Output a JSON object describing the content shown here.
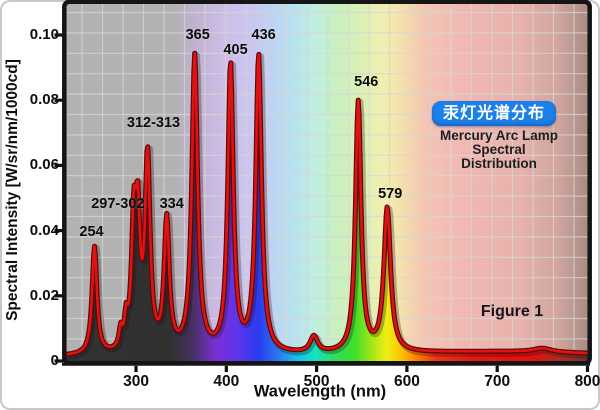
{
  "figure": {
    "caption": "Figure 1"
  },
  "title_box": {
    "chinese_title": "汞灯光谱分布",
    "box_color": "#1d7fe8",
    "text_color": "#ffffff",
    "english_title_lines": [
      "Mercury Arc Lamp",
      "Spectral",
      "Distribution"
    ]
  },
  "axes": {
    "x_title": "Wavelength (nm)",
    "y_title": "Spectral Intensity [W/sr/nm/1000cd]",
    "x_tick_labels": [
      "300",
      "400",
      "500",
      "600",
      "700",
      "800"
    ],
    "y_tick_labels": [
      "0.10",
      "0.08",
      "0.06",
      "0.04",
      "0.02",
      "0"
    ]
  },
  "chart_data": {
    "type": "line",
    "title": "Mercury Arc Lamp Spectral Distribution",
    "title_chinese": "汞灯光谱分布",
    "xlabel": "Wavelength (nm)",
    "ylabel": "Spectral Intensity [W/sr/nm/1000cd]",
    "xlim": [
      223,
      800
    ],
    "ylim": [
      0,
      0.1095
    ],
    "x_ticks": [
      300,
      400,
      500,
      600,
      700,
      800
    ],
    "y_ticks": [
      0.1,
      0.08,
      0.06,
      0.04,
      0.02,
      0
    ],
    "grid": true,
    "line_color": "#e01212",
    "line_edge_color": "#5f0808",
    "baseline_intensity": 0.0012,
    "peaks": [
      {
        "nm": 254,
        "intensity": 0.036,
        "label": "254",
        "dx": -3,
        "dy": -12,
        "h": 0.033,
        "w": 3.2
      },
      {
        "nm": 283,
        "intensity": 0.011,
        "h": 0.0055,
        "w": 2.2
      },
      {
        "nm": 289,
        "intensity": 0.015,
        "h": 0.008,
        "w": 2.2
      },
      {
        "nm": 297.5,
        "intensity": 0.0435,
        "h": 0.036,
        "w": 3.0
      },
      {
        "nm": 302,
        "intensity": 0.045,
        "label": "297-302",
        "dx": -20,
        "dy": -10,
        "h": 0.036,
        "w": 3.0
      },
      {
        "nm": 312.7,
        "intensity": 0.07,
        "label": "312-313",
        "dx": 6,
        "dy": -10,
        "h": 0.059,
        "w": 3.4
      },
      {
        "nm": 334,
        "intensity": 0.0455,
        "label": "334",
        "dx": 5,
        "dy": -9,
        "h": 0.04,
        "w": 3.4
      },
      {
        "nm": 365,
        "intensity": 0.096,
        "label": "365",
        "dx": 3,
        "dy": -13,
        "h": 0.091,
        "w": 3.8
      },
      {
        "nm": 404.7,
        "intensity": 0.0935,
        "label": "405",
        "dx": 5,
        "dy": -6,
        "h": 0.088,
        "w": 3.6
      },
      {
        "nm": 435.8,
        "intensity": 0.096,
        "label": "436",
        "dx": 5,
        "dy": -13,
        "h": 0.091,
        "w": 3.8
      },
      {
        "nm": 497,
        "intensity": 0.008,
        "h": 0.005,
        "w": 5
      },
      {
        "nm": 546.1,
        "intensity": 0.082,
        "label": "546",
        "dx": 8,
        "dy": -12,
        "h": 0.077,
        "w": 3.6
      },
      {
        "nm": 578.2,
        "intensity": 0.049,
        "label": "579",
        "dx": 3,
        "dy": -7,
        "h": 0.044,
        "w": 4.4
      },
      {
        "nm": 700,
        "intensity": 0.003,
        "h": 0.0016,
        "w": 150
      },
      {
        "nm": 750,
        "intensity": 0.0042,
        "h": 0.0012,
        "w": 12
      }
    ],
    "background": {
      "pale_stops": [
        {
          "nm": 223,
          "color": "#b2b2b2"
        },
        {
          "nm": 340,
          "color": "#b3b1b3"
        },
        {
          "nm": 372,
          "color": "#c3b3d5"
        },
        {
          "nm": 400,
          "color": "#cdbfe9"
        },
        {
          "nm": 428,
          "color": "#c9c6f0"
        },
        {
          "nm": 450,
          "color": "#bfd2f3"
        },
        {
          "nm": 475,
          "color": "#b8e2f0"
        },
        {
          "nm": 497,
          "color": "#bfeee0"
        },
        {
          "nm": 520,
          "color": "#c8f0c2"
        },
        {
          "nm": 548,
          "color": "#d9f0b4"
        },
        {
          "nm": 574,
          "color": "#f1efb0"
        },
        {
          "nm": 597,
          "color": "#f6ddac"
        },
        {
          "nm": 622,
          "color": "#f3c4b4"
        },
        {
          "nm": 665,
          "color": "#f0b8b3"
        },
        {
          "nm": 725,
          "color": "#e7b2ac"
        },
        {
          "nm": 768,
          "color": "#d0a59d"
        },
        {
          "nm": 800,
          "color": "#a78d84"
        }
      ],
      "saturated_stops": [
        {
          "nm": 223,
          "color": "#333333"
        },
        {
          "nm": 338,
          "color": "#303030"
        },
        {
          "nm": 362,
          "color": "#46305e"
        },
        {
          "nm": 388,
          "color": "#7a2fd2"
        },
        {
          "nm": 412,
          "color": "#6134ea"
        },
        {
          "nm": 436,
          "color": "#2a3cf0"
        },
        {
          "nm": 460,
          "color": "#2b80f0"
        },
        {
          "nm": 480,
          "color": "#10c6ee"
        },
        {
          "nm": 499,
          "color": "#16e2c0"
        },
        {
          "nm": 518,
          "color": "#2ede62"
        },
        {
          "nm": 542,
          "color": "#3ede2a"
        },
        {
          "nm": 562,
          "color": "#a8e616"
        },
        {
          "nm": 578,
          "color": "#f0ee14"
        },
        {
          "nm": 594,
          "color": "#fdc103"
        },
        {
          "nm": 612,
          "color": "#fe7a00"
        },
        {
          "nm": 632,
          "color": "#f03512"
        },
        {
          "nm": 675,
          "color": "#e61616"
        },
        {
          "nm": 742,
          "color": "#de1111"
        },
        {
          "nm": 772,
          "color": "#a33027"
        },
        {
          "nm": 800,
          "color": "#6e3430"
        }
      ]
    }
  }
}
